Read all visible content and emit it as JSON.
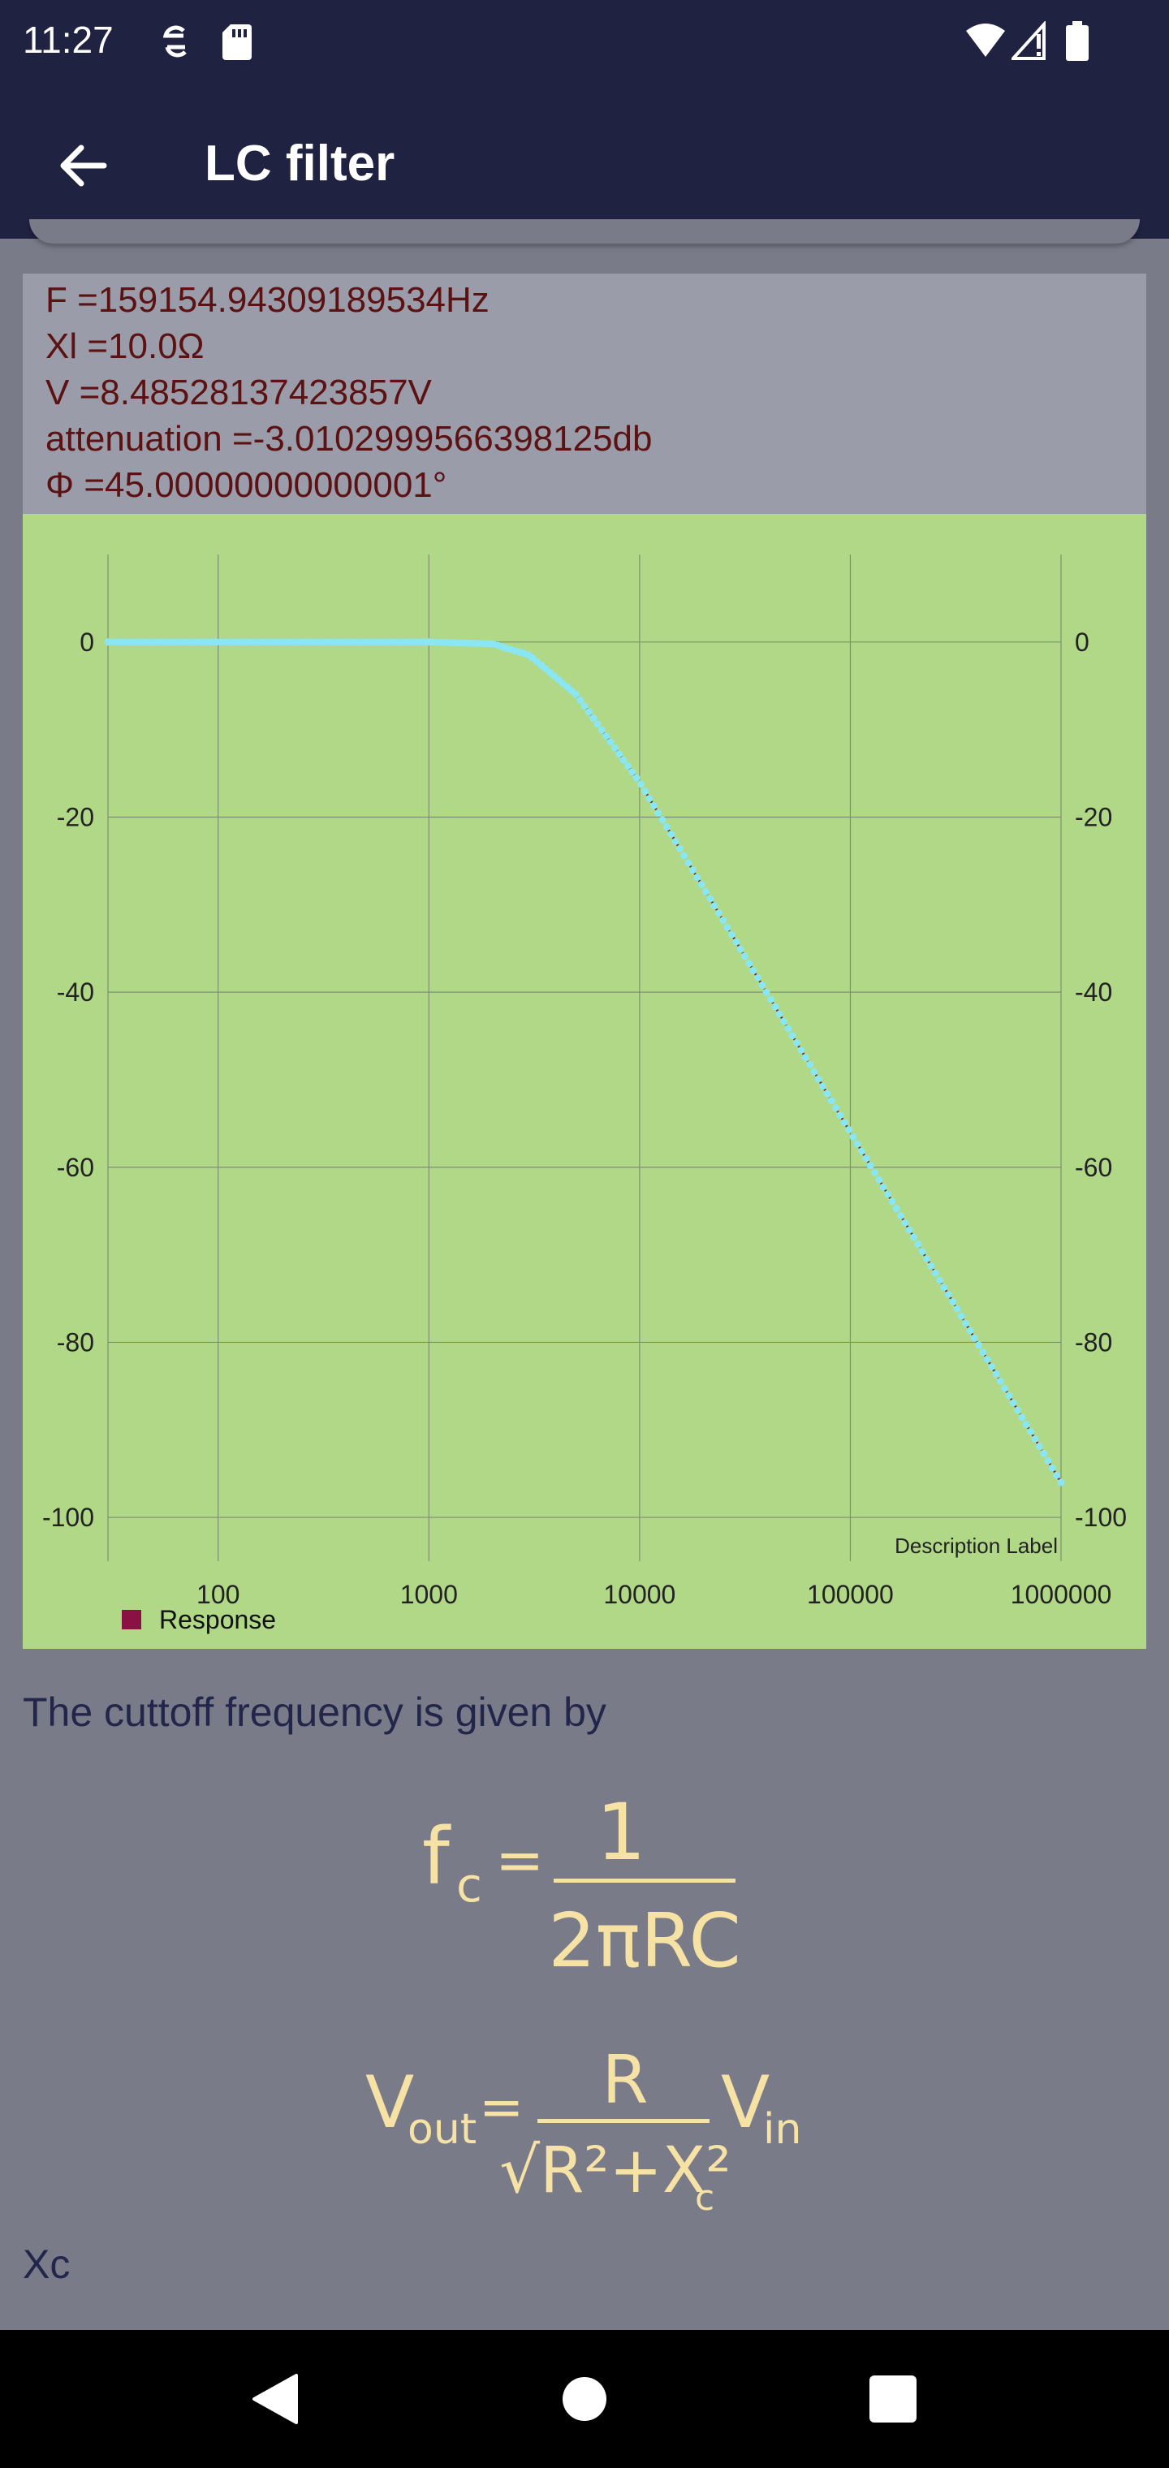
{
  "status_bar": {
    "time": "11:27"
  },
  "app_bar": {
    "title": "LC filter"
  },
  "info": {
    "frequency": "F =159154.94309189534Hz",
    "xl": "Xl =10.0Ω",
    "voltage": "V =8.48528137423857V",
    "attenuation": "attenuation =-3.0102999566398125db",
    "phase": "Φ =45.00000000000001°"
  },
  "colors": {
    "chart_background": "#b0d887",
    "line": "#7a1a1a",
    "points": "#8ae6f2",
    "legend_swatch": "#8b1145",
    "formula": "#f7e2a6",
    "app_bar": "#1f2240"
  },
  "chart_data": {
    "type": "line",
    "x_scale": "log",
    "xlim": [
      30,
      1000000
    ],
    "ylim": [
      -105,
      10
    ],
    "x_ticks": [
      "100",
      "1000",
      "10000",
      "100000",
      "1000000"
    ],
    "y_ticks": [
      "0",
      "-20",
      "-40",
      "-60",
      "-80",
      "-100"
    ],
    "description_label": "Description Label",
    "legend": {
      "label": "Response",
      "placement": "bottom-left"
    },
    "grid": true,
    "series": [
      {
        "name": "Response",
        "x": [
          30,
          100,
          300,
          1000,
          2000,
          3000,
          5000,
          10000,
          30000,
          100000,
          300000,
          1000000
        ],
        "values": [
          0,
          0,
          0,
          0,
          -0.2,
          -1.5,
          -6,
          -16,
          -35,
          -56,
          -75,
          -96
        ]
      }
    ]
  },
  "explanation": {
    "cutoff_text": "The cuttoff frequency is given by",
    "xc_label": "Xc"
  },
  "formulas": {
    "fc_lhs": "f",
    "fc_sub": "c",
    "fc_eq": "=",
    "fc_num": "1",
    "fc_den": "2πRC",
    "vout_v": "V",
    "vout_sub": "out",
    "vout_eq": "=",
    "vout_num": "R",
    "vout_den": "√R²+X²",
    "vout_den_sub": "c",
    "vin_v": "V",
    "vin_sub": "in"
  },
  "icons": [
    "back-arrow-icon",
    "sync-icon",
    "sd-card-icon",
    "wifi-icon",
    "signal-icon",
    "battery-icon",
    "nav-back-icon",
    "nav-home-icon",
    "nav-recents-icon"
  ]
}
